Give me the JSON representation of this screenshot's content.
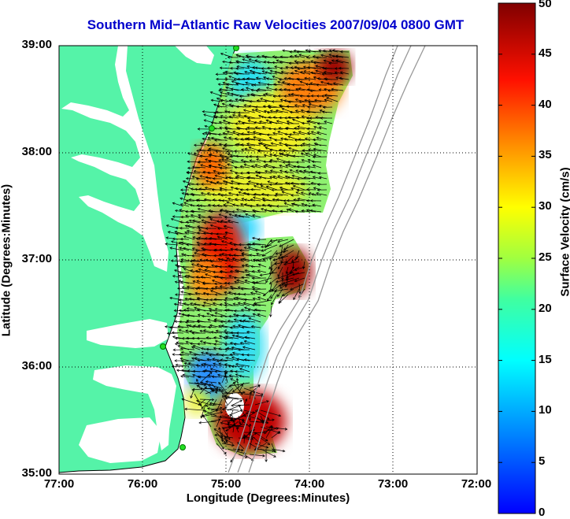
{
  "title": "Southern Mid−Atlantic Raw Velocities 2007/09/04 0800 GMT",
  "xlabel": "Longitude (Degrees:Minutes)",
  "ylabel": "Latitude (Degrees:Minutes)",
  "colorbar": {
    "label": "Surface Velocity (cm/s)",
    "ticks": [
      "0",
      "5",
      "10",
      "15",
      "20",
      "25",
      "30",
      "35",
      "40",
      "45",
      "50"
    ]
  },
  "colors": {
    "land": "#55f3a8",
    "water": "#ffffff",
    "title": "#0000cc",
    "bathymetry": "#999999",
    "station": "#22dd22"
  },
  "chart_data": {
    "type": "map",
    "xlim": [
      -77,
      -72
    ],
    "ylim": [
      35,
      39
    ],
    "xticks": [
      "77:00",
      "76:00",
      "75:00",
      "74:00",
      "73:00",
      "72:00"
    ],
    "yticks": [
      "39:00",
      "38:00",
      "37:00",
      "36:00",
      "35:00"
    ],
    "grid": true,
    "colorbar_range": [
      0,
      50
    ],
    "colormap": "jet",
    "speed_regions": [
      {
        "lon": -73.8,
        "lat": 38.8,
        "speed": 48
      },
      {
        "lon": -74.3,
        "lat": 38.6,
        "speed": 35
      },
      {
        "lon": -75.0,
        "lat": 37.9,
        "speed": 38
      },
      {
        "lon": -74.9,
        "lat": 37.2,
        "speed": 42
      },
      {
        "lon": -74.1,
        "lat": 36.8,
        "speed": 47
      },
      {
        "lon": -74.9,
        "lat": 35.5,
        "speed": 48
      },
      {
        "lon": -74.6,
        "lat": 36.2,
        "speed": 13
      },
      {
        "lon": -74.7,
        "lat": 38.7,
        "speed": 12
      }
    ]
  }
}
